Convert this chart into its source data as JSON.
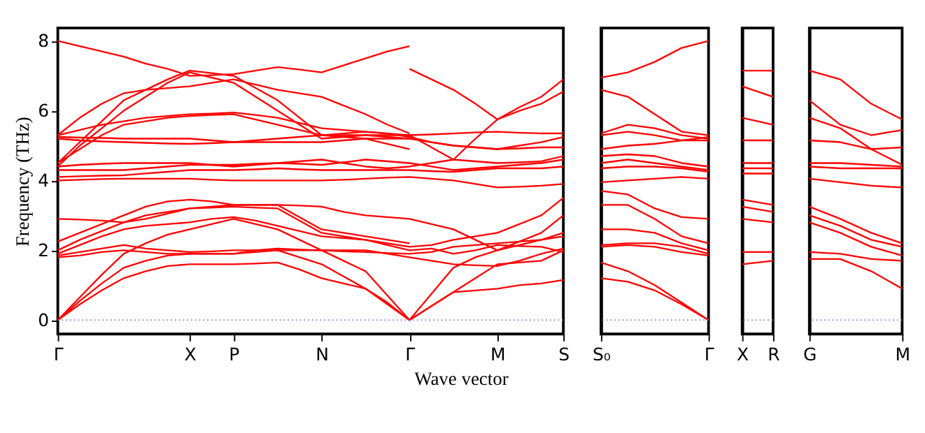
{
  "chart_data": [
    {
      "type": "line",
      "ylabel": "Frequency (THz)",
      "xlabel": "Wave vector",
      "ylim": [
        -0.4,
        8.37
      ],
      "yticks": [
        0,
        2,
        4,
        6,
        8
      ],
      "categories": [
        "Γ",
        null,
        null,
        null,
        null,
        null,
        "X",
        null,
        "P",
        null,
        null,
        null,
        "N",
        null,
        null,
        null,
        "Γ",
        null,
        null,
        null,
        "M",
        null,
        null,
        "S"
      ],
      "ref_lines": [
        {
          "axis": "y",
          "value": 0,
          "color": "#7777ee",
          "line_style": "dotted"
        }
      ],
      "series": [
        {
          "color": "#ff0000",
          "values": [
            0,
            0.45,
            0.85,
            1.2,
            1.4,
            1.55,
            1.6,
            1.6,
            1.6,
            1.62,
            1.65,
            1.45,
            1.2,
            1.05,
            0.9,
            0.5,
            0,
            0.4,
            0.8,
            0.85,
            0.9,
            1.0,
            1.05,
            1.15
          ]
        },
        {
          "color": "#ff0000",
          "values": [
            0,
            0.55,
            1.05,
            1.5,
            1.7,
            1.85,
            1.9,
            1.9,
            1.9,
            1.95,
            2.0,
            1.8,
            1.6,
            1.25,
            0.9,
            0.45,
            0,
            0.4,
            0.8,
            1.2,
            1.6,
            1.65,
            1.7,
            2.0
          ]
        },
        {
          "color": "#ff0000",
          "values": [
            0,
            0.65,
            1.3,
            1.9,
            2.2,
            2.45,
            2.6,
            2.75,
            2.9,
            2.75,
            2.6,
            2.3,
            2.0,
            1.7,
            1.4,
            0.7,
            0,
            0.75,
            1.5,
            1.8,
            2.0,
            2.15,
            2.3,
            2.5
          ]
        },
        {
          "color": "#ff0000",
          "values": [
            1.8,
            1.85,
            1.95,
            2.0,
            1.95,
            1.9,
            1.9,
            1.9,
            1.9,
            2.0,
            2.05,
            2.02,
            2.0,
            2.0,
            2.0,
            1.9,
            1.8,
            1.7,
            1.6,
            1.57,
            1.55,
            1.7,
            1.9,
            2.05
          ]
        },
        {
          "color": "#ff0000",
          "values": [
            1.85,
            1.95,
            2.05,
            2.15,
            2.05,
            2.0,
            1.95,
            1.97,
            2.0,
            2.0,
            2.0,
            2.0,
            2.0,
            1.97,
            1.95,
            1.92,
            1.9,
            1.95,
            2.1,
            2.15,
            2.2,
            2.25,
            2.3,
            2.4
          ]
        },
        {
          "color": "#ff0000",
          "values": [
            1.9,
            2.15,
            2.4,
            2.6,
            2.7,
            2.75,
            2.8,
            2.9,
            2.95,
            2.85,
            2.7,
            2.55,
            2.4,
            2.35,
            2.3,
            2.15,
            2.0,
            2.05,
            1.9,
            2.0,
            2.15,
            2.12,
            2.1,
            1.95
          ]
        },
        {
          "color": "#ff0000",
          "values": [
            2.0,
            2.3,
            2.55,
            2.8,
            3.0,
            3.1,
            3.2,
            3.22,
            3.25,
            3.22,
            3.2,
            2.85,
            2.5,
            2.4,
            2.3,
            2.2,
            2.1,
            2.15,
            2.3,
            2.4,
            2.5,
            2.75,
            3.0,
            3.5
          ]
        },
        {
          "color": "#ff0000",
          "values": [
            2.25,
            2.5,
            2.75,
            3.0,
            3.25,
            3.4,
            3.45,
            3.4,
            3.3,
            3.3,
            3.3,
            2.95,
            2.6,
            2.5,
            2.4,
            2.3,
            2.2,
            null,
            null,
            null,
            null,
            null,
            null,
            null
          ]
        },
        {
          "color": "#ff0000",
          "values": [
            2.9,
            2.88,
            2.85,
            2.8,
            2.9,
            3.05,
            3.2,
            3.25,
            3.3,
            3.3,
            3.3,
            3.28,
            3.25,
            3.1,
            3.0,
            2.95,
            2.9,
            2.75,
            2.6,
            2.3,
            2.0,
            2.25,
            2.5,
            3.0
          ]
        },
        {
          "color": "#ff0000",
          "values": [
            4.0,
            4.02,
            4.04,
            4.05,
            4.05,
            4.05,
            4.05,
            4.02,
            4.0,
            4.0,
            4.0,
            4.0,
            4.0,
            4.02,
            4.05,
            4.08,
            4.1,
            4.05,
            4.0,
            3.9,
            3.8,
            3.82,
            3.85,
            3.9
          ]
        },
        {
          "color": "#ff0000",
          "values": [
            4.1,
            4.12,
            4.14,
            4.15,
            4.2,
            4.25,
            4.3,
            4.3,
            4.3,
            4.32,
            4.35,
            4.32,
            4.3,
            4.3,
            4.3,
            4.3,
            4.3,
            4.27,
            4.25,
            4.3,
            4.35,
            4.35,
            4.35,
            4.4
          ]
        },
        {
          "color": "#ff0000",
          "values": [
            4.3,
            4.3,
            4.3,
            4.3,
            4.35,
            4.4,
            4.45,
            4.45,
            4.45,
            4.48,
            4.5,
            4.55,
            4.6,
            4.5,
            4.4,
            4.35,
            4.4,
            4.5,
            4.6,
            4.55,
            4.5,
            4.52,
            4.55,
            4.7
          ]
        },
        {
          "color": "#ff0000",
          "values": [
            4.4,
            4.45,
            4.48,
            4.5,
            4.5,
            4.5,
            4.5,
            4.45,
            4.4,
            4.45,
            4.5,
            4.48,
            4.45,
            4.52,
            4.6,
            4.55,
            4.5,
            4.4,
            4.3,
            4.35,
            4.4,
            4.45,
            4.5,
            4.6
          ]
        },
        {
          "color": "#ff0000",
          "values": [
            5.2,
            5.15,
            5.12,
            5.1,
            5.08,
            5.06,
            5.05,
            5.07,
            5.1,
            5.1,
            5.1,
            5.1,
            5.1,
            5.15,
            5.2,
            5.2,
            5.2,
            5.1,
            5.0,
            4.95,
            4.9,
            4.92,
            4.95,
            4.95
          ]
        },
        {
          "color": "#ff0000",
          "values": [
            5.25,
            5.23,
            5.22,
            5.2,
            5.2,
            5.2,
            5.2,
            5.15,
            5.1,
            5.15,
            5.2,
            5.25,
            5.3,
            5.3,
            5.3,
            5.3,
            5.3,
            5.32,
            5.35,
            5.38,
            5.4,
            5.37,
            5.35,
            5.35
          ]
        },
        {
          "color": "#ff0000",
          "values": [
            4.5,
            4.9,
            5.3,
            5.6,
            5.7,
            5.8,
            5.85,
            5.88,
            5.9,
            5.75,
            5.6,
            5.45,
            5.3,
            5.25,
            5.2,
            5.05,
            4.9,
            null,
            null,
            null,
            null,
            null,
            null,
            null
          ]
        },
        {
          "color": "#ff0000",
          "values": [
            5.3,
            5.45,
            5.6,
            5.7,
            5.8,
            5.85,
            5.9,
            5.92,
            5.95,
            5.88,
            5.8,
            5.65,
            5.5,
            5.45,
            5.4,
            5.35,
            5.25,
            5.1,
            5.0,
            4.95,
            4.9,
            5.0,
            5.1,
            5.25
          ]
        },
        {
          "color": "#ff0000",
          "values": [
            4.5,
            5.1,
            5.7,
            6.3,
            6.6,
            6.9,
            7.15,
            7.08,
            7.0,
            6.65,
            6.3,
            5.8,
            5.3,
            5.35,
            5.4,
            5.35,
            5.3,
            4.95,
            4.6,
            5.2,
            5.75,
            6.0,
            6.2,
            6.55
          ]
        },
        {
          "color": "#ff0000",
          "values": [
            4.4,
            5.0,
            5.5,
            6.0,
            6.4,
            6.8,
            7.1,
            6.95,
            6.8,
            6.4,
            6.0,
            5.6,
            5.2,
            5.25,
            5.3,
            5.25,
            5.2,
            null,
            null,
            null,
            null,
            null,
            null,
            null
          ]
        },
        {
          "color": "#ff0000",
          "values": [
            8.0,
            7.85,
            7.7,
            7.55,
            7.35,
            7.2,
            7.0,
            7.02,
            7.05,
            7.15,
            7.25,
            7.18,
            7.1,
            7.3,
            7.5,
            7.7,
            7.85,
            null,
            null,
            null,
            null,
            null,
            null,
            null
          ]
        },
        {
          "color": "#ff0000",
          "values": [
            5.3,
            5.8,
            6.2,
            6.5,
            6.6,
            6.65,
            6.7,
            6.8,
            6.9,
            6.75,
            6.6,
            6.5,
            6.4,
            6.15,
            5.9,
            5.6,
            5.35,
            null,
            null,
            null,
            null,
            null,
            null,
            null
          ]
        },
        {
          "color": "#ff0000",
          "values": [
            null,
            null,
            null,
            null,
            null,
            null,
            null,
            null,
            null,
            null,
            null,
            null,
            null,
            null,
            null,
            null,
            7.2,
            6.9,
            6.6,
            6.2,
            5.75,
            6.1,
            6.4,
            6.9
          ]
        }
      ]
    },
    {
      "type": "line",
      "tick_labels": "x",
      "ylim": [
        -0.4,
        8.37
      ],
      "categories": [
        "S₀",
        null,
        null,
        null,
        "Γ"
      ],
      "ref_lines": [
        {
          "axis": "y",
          "value": 0,
          "color": "#7777ee",
          "line_style": "dotted"
        }
      ],
      "series": [
        {
          "color": "#ff0000",
          "values": [
            6.95,
            7.1,
            7.4,
            7.8,
            8.0
          ]
        },
        {
          "color": "#ff0000",
          "values": [
            6.6,
            6.4,
            5.9,
            5.4,
            5.3
          ]
        },
        {
          "color": "#ff0000",
          "values": [
            5.35,
            5.6,
            5.5,
            5.3,
            5.2
          ]
        },
        {
          "color": "#ff0000",
          "values": [
            5.3,
            5.4,
            5.3,
            5.15,
            5.25
          ]
        },
        {
          "color": "#ff0000",
          "values": [
            4.9,
            5.0,
            5.05,
            5.15,
            5.15
          ]
        },
        {
          "color": "#ff0000",
          "values": [
            4.7,
            4.75,
            4.7,
            4.5,
            4.4
          ]
        },
        {
          "color": "#ff0000",
          "values": [
            4.5,
            4.6,
            4.5,
            4.4,
            4.3
          ]
        },
        {
          "color": "#ff0000",
          "values": [
            4.35,
            4.4,
            4.4,
            4.35,
            4.25
          ]
        },
        {
          "color": "#ff0000",
          "values": [
            3.95,
            4.0,
            4.05,
            4.1,
            4.05
          ]
        },
        {
          "color": "#ff0000",
          "values": [
            3.7,
            3.6,
            3.2,
            2.95,
            2.9
          ]
        },
        {
          "color": "#ff0000",
          "values": [
            3.3,
            3.3,
            2.9,
            2.4,
            2.2
          ]
        },
        {
          "color": "#ff0000",
          "values": [
            2.6,
            2.6,
            2.5,
            2.2,
            2.0
          ]
        },
        {
          "color": "#ff0000",
          "values": [
            2.15,
            2.2,
            2.2,
            2.1,
            1.9
          ]
        },
        {
          "color": "#ff0000",
          "values": [
            2.1,
            2.15,
            2.1,
            1.95,
            1.85
          ]
        },
        {
          "color": "#ff0000",
          "values": [
            1.65,
            1.4,
            1.0,
            0.5,
            0
          ]
        },
        {
          "color": "#ff0000",
          "values": [
            1.2,
            1.1,
            0.85,
            0.45,
            0
          ]
        }
      ]
    },
    {
      "type": "line",
      "tick_labels": "x",
      "ylim": [
        -0.4,
        8.37
      ],
      "categories": [
        "X",
        "R"
      ],
      "ref_lines": [
        {
          "axis": "y",
          "value": 0,
          "color": "#7777ee",
          "line_style": "dotted"
        }
      ],
      "series": [
        {
          "color": "#ff0000",
          "values": [
            7.15,
            7.15
          ]
        },
        {
          "color": "#ff0000",
          "values": [
            6.7,
            6.4
          ]
        },
        {
          "color": "#ff0000",
          "values": [
            5.8,
            5.6
          ]
        },
        {
          "color": "#ff0000",
          "values": [
            5.15,
            5.15
          ]
        },
        {
          "color": "#ff0000",
          "values": [
            4.5,
            4.5
          ]
        },
        {
          "color": "#ff0000",
          "values": [
            4.35,
            4.35
          ]
        },
        {
          "color": "#ff0000",
          "values": [
            4.2,
            4.2
          ]
        },
        {
          "color": "#ff0000",
          "values": [
            3.45,
            3.3
          ]
        },
        {
          "color": "#ff0000",
          "values": [
            3.25,
            3.1
          ]
        },
        {
          "color": "#ff0000",
          "values": [
            2.9,
            2.8
          ]
        },
        {
          "color": "#ff0000",
          "values": [
            1.95,
            1.95
          ]
        },
        {
          "color": "#ff0000",
          "values": [
            1.6,
            1.7
          ]
        }
      ]
    },
    {
      "type": "line",
      "tick_labels": "x",
      "ylim": [
        -0.4,
        8.37
      ],
      "categories": [
        "G",
        null,
        null,
        "M"
      ],
      "ref_lines": [
        {
          "axis": "y",
          "value": 0,
          "color": "#7777ee",
          "line_style": "dotted"
        }
      ],
      "series": [
        {
          "color": "#ff0000",
          "values": [
            7.15,
            6.9,
            6.2,
            5.75
          ]
        },
        {
          "color": "#ff0000",
          "values": [
            6.3,
            5.6,
            5.3,
            5.45
          ]
        },
        {
          "color": "#ff0000",
          "values": [
            5.8,
            5.5,
            4.9,
            4.45
          ]
        },
        {
          "color": "#ff0000",
          "values": [
            5.15,
            5.1,
            4.9,
            4.95
          ]
        },
        {
          "color": "#ff0000",
          "values": [
            4.5,
            4.5,
            4.45,
            4.4
          ]
        },
        {
          "color": "#ff0000",
          "values": [
            4.4,
            4.35,
            4.35,
            4.35
          ]
        },
        {
          "color": "#ff0000",
          "values": [
            4.05,
            3.95,
            3.85,
            3.8
          ]
        },
        {
          "color": "#ff0000",
          "values": [
            3.25,
            2.9,
            2.5,
            2.2
          ]
        },
        {
          "color": "#ff0000",
          "values": [
            3.0,
            2.7,
            2.3,
            2.1
          ]
        },
        {
          "color": "#ff0000",
          "values": [
            2.8,
            2.5,
            2.1,
            1.85
          ]
        },
        {
          "color": "#ff0000",
          "values": [
            1.95,
            1.9,
            1.75,
            1.7
          ]
        },
        {
          "color": "#ff0000",
          "values": [
            1.75,
            1.75,
            1.4,
            0.9
          ]
        }
      ]
    }
  ]
}
